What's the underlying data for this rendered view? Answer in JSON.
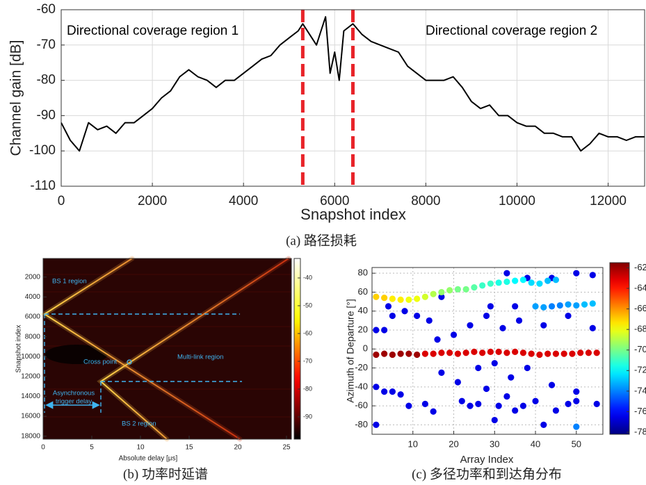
{
  "chart_data": [
    {
      "type": "line",
      "caption": "(a) 路径损耗",
      "xlabel": "Snapshot index",
      "ylabel": "Channel gain [dB]",
      "annotations": [
        "Directional coverage region 1",
        "Directional coverage region 2"
      ],
      "x": [
        0,
        200,
        400,
        600,
        800,
        1000,
        1200,
        1400,
        1600,
        1800,
        2000,
        2200,
        2400,
        2600,
        2800,
        3000,
        3200,
        3400,
        3600,
        3800,
        4000,
        4200,
        4400,
        4600,
        4800,
        5000,
        5200,
        5300,
        5500,
        5600,
        5700,
        5800,
        5900,
        6000,
        6100,
        6200,
        6400,
        6600,
        6800,
        7000,
        7200,
        7400,
        7600,
        7800,
        8000,
        8200,
        8400,
        8600,
        8800,
        9000,
        9200,
        9400,
        9600,
        9800,
        10000,
        10200,
        10400,
        10600,
        10800,
        11000,
        11200,
        11400,
        11600,
        11800,
        12000,
        12200,
        12400,
        12600,
        12800
      ],
      "values": [
        -92,
        -97,
        -100,
        -92,
        -94,
        -93,
        -95,
        -92,
        -92,
        -90,
        -88,
        -85,
        -83,
        -79,
        -77,
        -79,
        -80,
        -82,
        -80,
        -80,
        -78,
        -76,
        -74,
        -73,
        -70,
        -68,
        -66,
        -64,
        -68,
        -70,
        -66,
        -62,
        -78,
        -72,
        -80,
        -66,
        -64,
        -67,
        -69,
        -70,
        -71,
        -72,
        -76,
        -78,
        -80,
        -80,
        -80,
        -79,
        -82,
        -86,
        -88,
        -87,
        -90,
        -90,
        -92,
        -93,
        -93,
        -95,
        -95,
        -96,
        -96,
        -100,
        -98,
        -95,
        -96,
        -96,
        -97,
        -96,
        -96
      ],
      "color": "#000000",
      "vlines": {
        "x": [
          5300,
          6400
        ],
        "color": "#e8242a"
      },
      "xlim": [
        0,
        12800
      ],
      "xticks": [
        0,
        2000,
        4000,
        6000,
        8000,
        10000,
        12000
      ],
      "ylim": [
        -110,
        -60
      ],
      "yticks": [
        -110,
        -100,
        -90,
        -80,
        -70,
        -60
      ],
      "grid": true
    },
    {
      "type": "heatmap",
      "caption": "(b) 功率时延谱",
      "xlabel": "Absolute delay [μs]",
      "ylabel": "Snapshot index",
      "annotations": [
        "BS 1 region",
        "Cross point",
        "Multi-link region",
        "Asynchronous",
        "trigger delay",
        "BS 2 region"
      ],
      "xlim": [
        0,
        25.5
      ],
      "xticks": [
        0,
        5,
        10,
        15,
        20,
        25
      ],
      "ylim": [
        130,
        18300
      ],
      "y_reversed": true,
      "yticks": [
        2000,
        4000,
        6000,
        8000,
        10000,
        12000,
        14000,
        16000,
        18000
      ],
      "grid": false,
      "colorbar": {
        "colormap": "hot",
        "lim": [
          -98,
          -33
        ],
        "ticks": [
          -40,
          -50,
          -60,
          -70,
          -80,
          -90
        ]
      }
    },
    {
      "type": "scatter",
      "caption": "(c) 多径功率和到达角分布",
      "xlabel": "Array Index",
      "ylabel": "Azimuth of Departure [°]",
      "x": [
        1,
        3,
        5,
        1,
        3,
        5,
        8,
        11,
        14,
        4,
        1,
        7,
        9,
        13,
        15,
        17,
        16,
        20,
        22,
        24,
        26,
        28,
        30,
        31,
        33,
        35,
        37,
        40,
        42,
        45,
        48,
        50,
        55,
        21,
        26,
        30,
        34,
        38,
        44,
        50,
        24,
        28,
        32,
        36,
        42,
        48,
        54,
        17,
        33,
        38,
        44,
        50,
        54,
        29,
        35,
        50,
        1,
        3,
        5,
        7,
        9,
        11,
        13,
        15,
        17,
        19,
        21,
        23,
        25,
        27,
        29,
        31,
        33,
        35,
        37,
        39,
        41,
        43,
        45,
        40,
        42,
        44,
        46,
        48,
        50,
        52,
        54,
        1,
        3,
        5,
        7,
        9,
        11,
        13,
        15,
        17,
        19,
        21,
        23,
        25,
        27,
        29,
        31,
        33,
        35,
        37,
        39,
        41,
        43,
        45,
        47,
        49,
        51,
        53,
        55
      ],
      "y": [
        -40,
        -45,
        -45,
        20,
        20,
        35,
        40,
        35,
        30,
        45,
        -80,
        -48,
        -60,
        -58,
        -66,
        -25,
        10,
        15,
        -55,
        -60,
        -58,
        -42,
        -75,
        -60,
        -50,
        -65,
        -60,
        -55,
        -80,
        -65,
        -58,
        -55,
        -58,
        -35,
        -20,
        -15,
        -30,
        -20,
        -38,
        -45,
        25,
        35,
        22,
        30,
        25,
        35,
        22,
        55,
        80,
        75,
        75,
        80,
        78,
        45,
        45,
        -82,
        55,
        54,
        53,
        52,
        52,
        53,
        55,
        58,
        60,
        62,
        63,
        63,
        65,
        67,
        69,
        70,
        71,
        72,
        73,
        70,
        69,
        72,
        73,
        45,
        44,
        45,
        46,
        47,
        46,
        47,
        48,
        -6,
        -5,
        -6,
        -5,
        -5,
        -6,
        -5,
        -5,
        -4,
        -4,
        -5,
        -4,
        -3,
        -4,
        -3,
        -3,
        -4,
        -3,
        -4,
        -5,
        -6,
        -5,
        -5,
        -5,
        -5,
        -4,
        -4,
        -4
      ],
      "values": [
        -76.5,
        -76.5,
        -76.5,
        -76.5,
        -76.5,
        -76.5,
        -76.5,
        -76.5,
        -76.5,
        -76.5,
        -76.5,
        -76.5,
        -76.5,
        -76.5,
        -76.5,
        -76.5,
        -76.5,
        -76.5,
        -76.5,
        -76.5,
        -76.5,
        -76.5,
        -76.5,
        -76.5,
        -76.5,
        -76.5,
        -76.5,
        -76.5,
        -76.5,
        -76.5,
        -76.5,
        -76.5,
        -76.5,
        -76.5,
        -76.5,
        -76.5,
        -76.5,
        -76.5,
        -76.5,
        -76.5,
        -76.5,
        -76.5,
        -76.5,
        -76.5,
        -76.5,
        -76.5,
        -76.5,
        -76.5,
        -76.5,
        -76.5,
        -76.5,
        -76.5,
        -76.5,
        -76.5,
        -76.5,
        -74,
        -67,
        -67,
        -67.5,
        -67.5,
        -68,
        -68,
        -68.5,
        -69,
        -69.5,
        -69.5,
        -70,
        -70,
        -70.5,
        -71,
        -71,
        -71.5,
        -71.5,
        -72,
        -72,
        -72.5,
        -72.5,
        -73,
        -73,
        -73.5,
        -73.5,
        -74,
        -74,
        -73.5,
        -73.5,
        -73,
        -73,
        -62,
        -62,
        -62,
        -62,
        -62,
        -62,
        -63,
        -63,
        -63,
        -63,
        -63,
        -63,
        -63,
        -63,
        -63,
        -63,
        -63,
        -63,
        -63,
        -63,
        -63,
        -63,
        -63,
        -63,
        -63,
        -63,
        -63,
        -63
      ],
      "xlim": [
        0,
        56.5
      ],
      "xticks": [
        10,
        20,
        30,
        40,
        50
      ],
      "ylim": [
        -90,
        86
      ],
      "yticks": [
        -80,
        -60,
        -40,
        -20,
        0,
        20,
        40,
        60,
        80
      ],
      "grid": true,
      "colorbar": {
        "colormap": "jet",
        "lim": [
          -78.2,
          -61.5
        ],
        "ticks": [
          -62,
          -64,
          -66,
          -68,
          -70,
          -72,
          -74,
          -76,
          -78
        ]
      }
    }
  ]
}
